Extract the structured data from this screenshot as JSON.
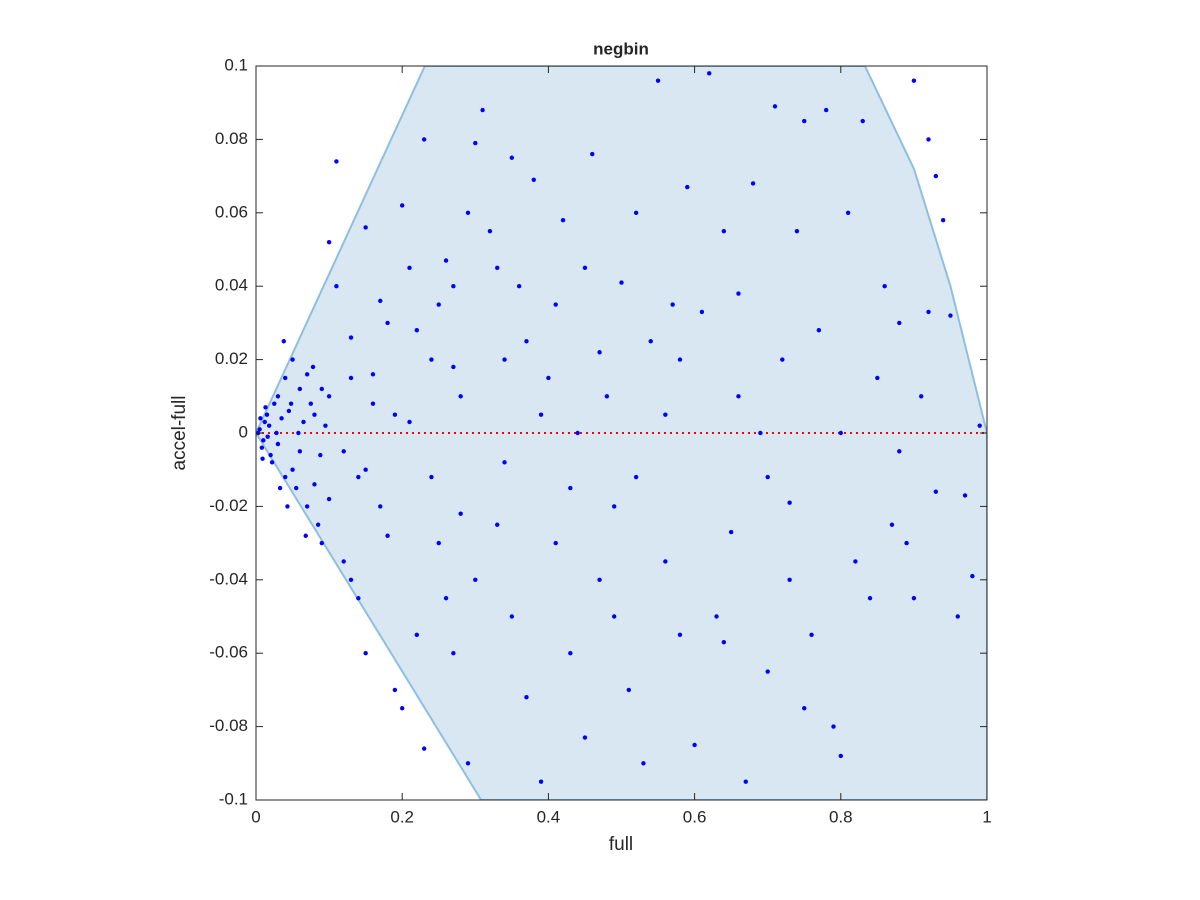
{
  "chart_data": {
    "type": "scatter",
    "title": "negbin",
    "x_label": "full",
    "y_label": "accel-full",
    "xlim": [
      0,
      1
    ],
    "ylim": [
      -0.1,
      0.1
    ],
    "xticks": [
      0,
      0.2,
      0.4,
      0.6,
      0.8,
      1
    ],
    "yticks": [
      -0.1,
      -0.08,
      -0.06,
      -0.04,
      -0.02,
      0,
      0.02,
      0.04,
      0.06,
      0.08,
      0.1
    ],
    "grid": false,
    "region": {
      "x": [
        0,
        0.231,
        0.833,
        0.9,
        0.95,
        1,
        1,
        0.308,
        0
      ],
      "y": [
        0,
        0.1,
        0.1,
        0.072,
        0.04,
        0,
        -0.1,
        -0.1,
        0
      ],
      "color": "#d9e7f3",
      "edge_color": "#8fbfe0"
    },
    "reference_line": {
      "y": 0,
      "color": "#ff0000"
    },
    "series": [
      {
        "color": "#0000ff",
        "x": [
          0.005,
          0.01,
          0.012,
          0.008,
          0.015,
          0.02,
          0.018,
          0.025,
          0.022,
          0.03,
          0.03,
          0.035,
          0.04,
          0.04,
          0.045,
          0.05,
          0.05,
          0.055,
          0.06,
          0.06,
          0.065,
          0.07,
          0.07,
          0.075,
          0.08,
          0.08,
          0.085,
          0.09,
          0.09,
          0.095,
          0.1,
          0.1,
          0.003,
          0.006,
          0.009,
          0.013,
          0.016,
          0.028,
          0.033,
          0.038,
          0.043,
          0.048,
          0.058,
          0.068,
          0.078,
          0.088,
          0.11,
          0.12,
          0.13,
          0.14,
          0.15,
          0.15,
          0.16,
          0.17,
          0.18,
          0.19,
          0.2,
          0.2,
          0.21,
          0.22,
          0.23,
          0.23,
          0.24,
          0.25,
          0.26,
          0.27,
          0.28,
          0.29,
          0.3,
          0.3,
          0.12,
          0.13,
          0.14,
          0.16,
          0.17,
          0.18,
          0.21,
          0.22,
          0.24,
          0.25,
          0.26,
          0.27,
          0.28,
          0.29,
          0.11,
          0.1,
          0.13,
          0.15,
          0.19,
          0.27,
          0.31,
          0.32,
          0.33,
          0.34,
          0.35,
          0.35,
          0.36,
          0.37,
          0.38,
          0.39,
          0.4,
          0.41,
          0.42,
          0.43,
          0.44,
          0.45,
          0.46,
          0.47,
          0.48,
          0.49,
          0.5,
          0.51,
          0.52,
          0.53,
          0.54,
          0.55,
          0.56,
          0.57,
          0.58,
          0.59,
          0.33,
          0.34,
          0.37,
          0.39,
          0.41,
          0.43,
          0.47,
          0.49,
          0.52,
          0.56,
          0.58,
          0.45,
          0.6,
          0.61,
          0.62,
          0.63,
          0.64,
          0.65,
          0.66,
          0.67,
          0.68,
          0.69,
          0.7,
          0.71,
          0.72,
          0.73,
          0.74,
          0.75,
          0.76,
          0.77,
          0.78,
          0.79,
          0.8,
          0.81,
          0.82,
          0.83,
          0.84,
          0.85,
          0.86,
          0.87,
          0.88,
          0.89,
          0.9,
          0.91,
          0.92,
          0.93,
          0.94,
          0.95,
          0.96,
          0.97,
          0.98,
          0.99,
          0.92,
          0.93,
          0.9,
          0.64,
          0.7,
          0.75,
          0.8,
          0.66,
          0.73,
          0.88
        ],
        "values": [
          0.001,
          -0.002,
          0.003,
          -0.004,
          0.005,
          -0.006,
          0.002,
          0.008,
          -0.008,
          0.01,
          -0.003,
          0.004,
          -0.012,
          0.015,
          0.006,
          -0.01,
          0.02,
          -0.015,
          0.012,
          -0.005,
          0.003,
          -0.02,
          0.016,
          0.008,
          -0.014,
          0.005,
          -0.025,
          0.012,
          -0.03,
          0.002,
          -0.018,
          0.01,
          0,
          0.004,
          -0.007,
          0.007,
          -0.001,
          0,
          -0.015,
          0.025,
          -0.02,
          0.008,
          0,
          -0.028,
          0.018,
          -0.006,
          0.04,
          -0.035,
          0.015,
          -0.045,
          0.056,
          -0.06,
          0.008,
          -0.02,
          0.03,
          -0.07,
          0.062,
          -0.075,
          0.045,
          -0.055,
          0.08,
          -0.086,
          0.02,
          -0.03,
          0.047,
          -0.06,
          0.01,
          -0.09,
          0.079,
          -0.04,
          -0.005,
          0.026,
          -0.012,
          0.016,
          0.036,
          -0.028,
          0.003,
          0.028,
          -0.012,
          0.035,
          -0.045,
          0.018,
          -0.022,
          0.06,
          0.074,
          0.052,
          -0.04,
          -0.01,
          0.005,
          0.04,
          0.088,
          0.055,
          -0.025,
          0.02,
          0.075,
          -0.05,
          0.04,
          -0.072,
          0.069,
          -0.095,
          0.015,
          -0.03,
          0.058,
          -0.06,
          0,
          -0.083,
          0.076,
          -0.04,
          0.01,
          -0.02,
          0.041,
          -0.07,
          0.06,
          -0.09,
          0.025,
          0.096,
          -0.035,
          0.035,
          -0.055,
          0.067,
          0.045,
          -0.008,
          0.025,
          0.005,
          0.035,
          -0.015,
          0.022,
          -0.05,
          -0.012,
          0.005,
          0.02,
          0.045,
          -0.085,
          0.033,
          0.098,
          -0.05,
          0.055,
          -0.027,
          0.038,
          -0.095,
          0.068,
          0,
          -0.065,
          0.089,
          0.02,
          -0.04,
          0.055,
          0.085,
          -0.055,
          0.028,
          0.088,
          -0.08,
          0,
          0.06,
          -0.035,
          0.085,
          -0.045,
          0.015,
          0.04,
          -0.025,
          0.03,
          -0.03,
          0.096,
          0.01,
          0.08,
          -0.016,
          0.058,
          0.032,
          -0.05,
          -0.017,
          -0.039,
          0.002,
          0.033,
          0.07,
          -0.045,
          -0.057,
          -0.012,
          -0.075,
          -0.088,
          0.01,
          -0.019,
          -0.005
        ]
      }
    ]
  }
}
